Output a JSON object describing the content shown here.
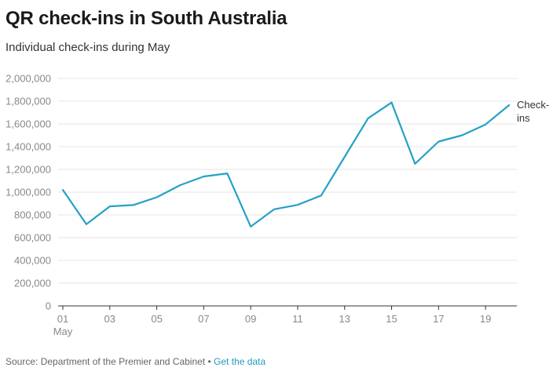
{
  "header": {
    "title": "QR check-ins in South Australia",
    "subtitle": "Individual check-ins during May"
  },
  "footer": {
    "source": "Source: Department of the Premier and Cabinet",
    "separator": " • ",
    "link_label": "Get the data"
  },
  "colors": {
    "series": "#25a1c6",
    "grid": "#e4e4e4",
    "axis": "#333333",
    "tick_label": "#888888",
    "link": "#1f9dbd"
  },
  "chart_data": {
    "type": "line",
    "title": "QR check-ins in South Australia",
    "subtitle": "Individual check-ins during May",
    "xlabel": "",
    "ylabel": "",
    "x": [
      1,
      2,
      3,
      4,
      5,
      6,
      7,
      8,
      9,
      10,
      11,
      12,
      13,
      14,
      15,
      16,
      17,
      18,
      19,
      20
    ],
    "x_ticks": [
      {
        "value": 1,
        "label": "01",
        "sublabel": "May"
      },
      {
        "value": 3,
        "label": "03"
      },
      {
        "value": 5,
        "label": "05"
      },
      {
        "value": 7,
        "label": "07"
      },
      {
        "value": 9,
        "label": "09"
      },
      {
        "value": 11,
        "label": "11"
      },
      {
        "value": 13,
        "label": "13"
      },
      {
        "value": 15,
        "label": "15"
      },
      {
        "value": 17,
        "label": "17"
      },
      {
        "value": 19,
        "label": "19"
      }
    ],
    "xlim": [
      1,
      20
    ],
    "ylim": [
      0,
      2000000
    ],
    "y_ticks": [
      {
        "value": 0,
        "label": "0"
      },
      {
        "value": 200000,
        "label": "200,000"
      },
      {
        "value": 400000,
        "label": "400,000"
      },
      {
        "value": 600000,
        "label": "600,000"
      },
      {
        "value": 800000,
        "label": "800,000"
      },
      {
        "value": 1000000,
        "label": "1,000,000"
      },
      {
        "value": 1200000,
        "label": "1,200,000"
      },
      {
        "value": 1400000,
        "label": "1,400,000"
      },
      {
        "value": 1600000,
        "label": "1,600,000"
      },
      {
        "value": 1800000,
        "label": "1,800,000"
      },
      {
        "value": 2000000,
        "label": "2,000,000"
      }
    ],
    "grid": true,
    "legend": "none",
    "series": [
      {
        "name": "Check-ins",
        "label_lines": [
          "Check-",
          "ins"
        ],
        "values": [
          1020000,
          718000,
          875000,
          887000,
          955000,
          1062000,
          1138000,
          1165000,
          697000,
          850000,
          888000,
          970000,
          1310000,
          1650000,
          1788000,
          1250000,
          1445000,
          1500000,
          1595000,
          1765000
        ]
      }
    ]
  }
}
